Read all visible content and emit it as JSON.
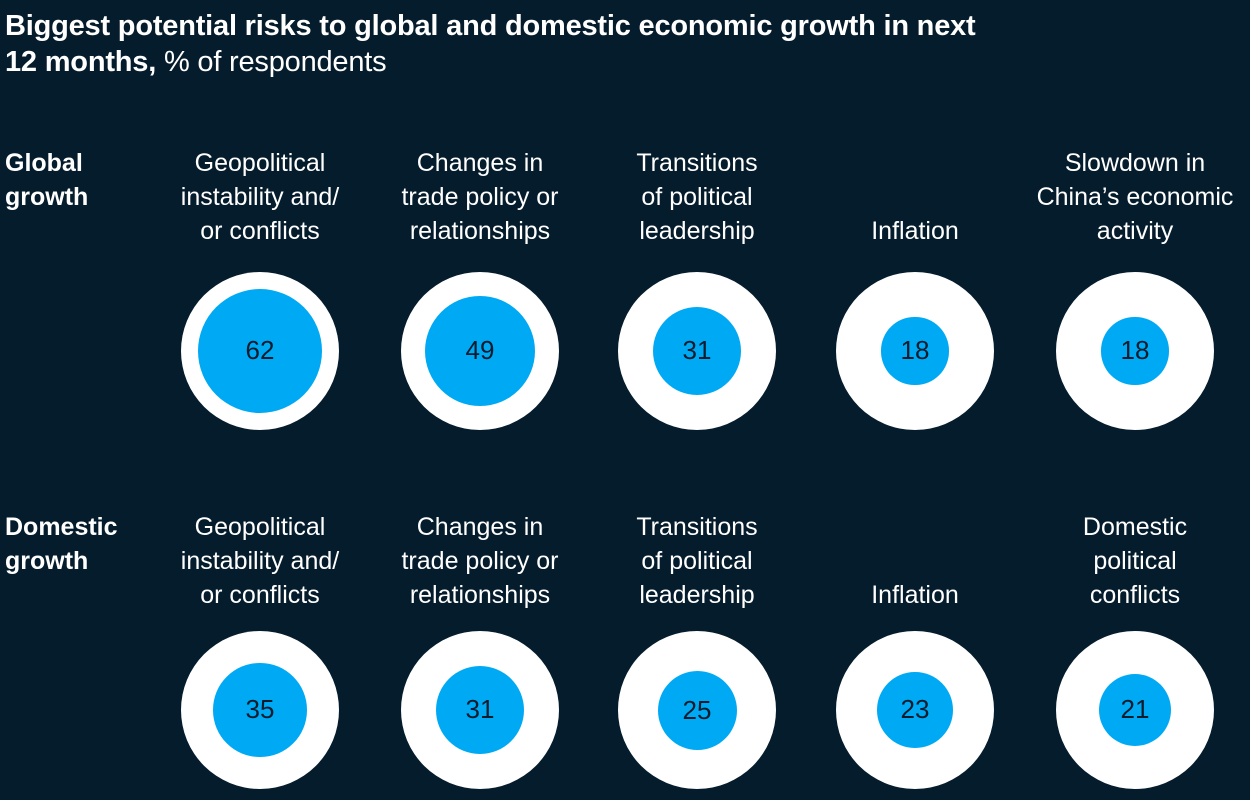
{
  "title": {
    "bold": "Biggest potential risks to global and domestic economic growth in next",
    "bold_line2": "12 months,",
    "light": " % of respondents"
  },
  "colors": {
    "background": "#051c2c",
    "outer": "#ffffff",
    "inner": "#00a9f4",
    "text": "#ffffff"
  },
  "rows": [
    {
      "label": "Global growth",
      "label_lines": [
        "Global",
        "growth"
      ],
      "items": [
        {
          "label_lines": [
            "Geopolitical",
            "instability and/",
            "or conflicts"
          ],
          "value": 62
        },
        {
          "label_lines": [
            "Changes in",
            "trade policy or",
            "relationships"
          ],
          "value": 49
        },
        {
          "label_lines": [
            "Transitions",
            "of political",
            "leadership"
          ],
          "value": 31
        },
        {
          "label_lines": [
            "Inflation"
          ],
          "value": 18
        },
        {
          "label_lines": [
            "Slowdown in",
            "China’s economic",
            "activity"
          ],
          "value": 18
        }
      ]
    },
    {
      "label": "Domestic growth",
      "label_lines": [
        "Domestic",
        "growth"
      ],
      "items": [
        {
          "label_lines": [
            "Geopolitical",
            "instability and/",
            "or conflicts"
          ],
          "value": 35
        },
        {
          "label_lines": [
            "Changes in",
            "trade policy or",
            "relationships"
          ],
          "value": 31
        },
        {
          "label_lines": [
            "Transitions",
            "of political",
            "leadership"
          ],
          "value": 25
        },
        {
          "label_lines": [
            "Inflation"
          ],
          "value": 23
        },
        {
          "label_lines": [
            "Domestic",
            "political",
            "conflicts"
          ],
          "value": 21
        }
      ]
    }
  ],
  "chart_data": [
    {
      "type": "bubble",
      "title": "Biggest potential risks to global and domestic economic growth in next 12 months, % of respondents",
      "subtitle": "Global growth",
      "categories": [
        "Geopolitical instability and/or conflicts",
        "Changes in trade policy or relationships",
        "Transitions of political leadership",
        "Inflation",
        "Slowdown in China’s economic activity"
      ],
      "values": [
        62,
        49,
        31,
        18,
        18
      ],
      "unit": "% of respondents",
      "scale_max": 100
    },
    {
      "type": "bubble",
      "title": "Biggest potential risks to global and domestic economic growth in next 12 months, % of respondents",
      "subtitle": "Domestic growth",
      "categories": [
        "Geopolitical instability and/or conflicts",
        "Changes in trade policy or relationships",
        "Transitions of political leadership",
        "Inflation",
        "Domestic political conflicts"
      ],
      "values": [
        35,
        31,
        25,
        23,
        21
      ],
      "unit": "% of respondents",
      "scale_max": 100
    }
  ]
}
